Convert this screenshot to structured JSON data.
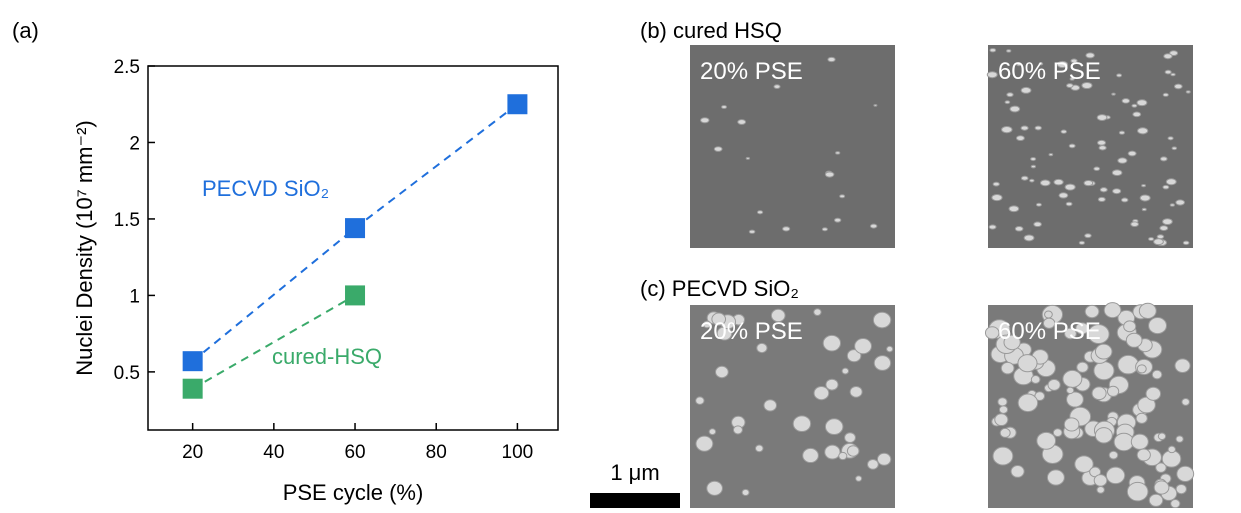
{
  "chart_data": {
    "type": "scatter",
    "panel_label": "(a)",
    "x_label": "PSE cycle (%)",
    "y_label": "Nuclei Density (10⁷ mm⁻²)",
    "xlim": [
      9,
      110
    ],
    "xticks": [
      20,
      40,
      60,
      80,
      100
    ],
    "ylim": [
      0.12,
      2.5
    ],
    "yticks": [
      0.5,
      1.0,
      1.5,
      2.0,
      2.5
    ],
    "series": [
      {
        "name": "PECVD SiO₂",
        "color": "#1f6fdc",
        "x": [
          20,
          60,
          100
        ],
        "values": [
          0.57,
          1.44,
          2.25
        ]
      },
      {
        "name": "cured-HSQ",
        "color": "#3aaa6a",
        "x": [
          20,
          60
        ],
        "values": [
          0.39,
          1.0
        ]
      }
    ]
  },
  "panels": [
    {
      "title": "(b) cured HSQ",
      "images": [
        "20% PSE",
        "60% PSE"
      ]
    },
    {
      "title": "(c) PECVD SiO₂",
      "images": [
        "20% PSE",
        "60% PSE"
      ]
    }
  ],
  "scale_bar": "1 μm"
}
